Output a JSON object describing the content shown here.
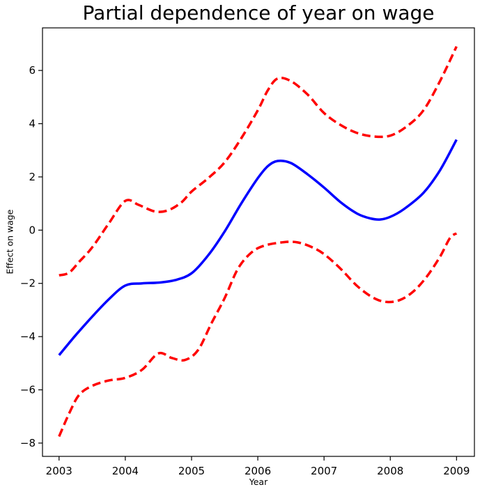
{
  "chart_data": {
    "type": "line",
    "title": "Partial dependence of year on wage",
    "xlabel": "Year",
    "ylabel": "Effect on wage",
    "xlim": [
      2002.75,
      2009.27
    ],
    "ylim": [
      -8.5,
      7.6
    ],
    "grid": false,
    "legend": null,
    "background_color": "#ffffff",
    "spine_color": "#000000",
    "xticks": {
      "values": [
        2003,
        2004,
        2005,
        2006,
        2007,
        2008,
        2009
      ],
      "labels": [
        "2003",
        "2004",
        "2005",
        "2006",
        "2007",
        "2008",
        "2009"
      ]
    },
    "yticks": {
      "values": [
        -8,
        -6,
        -4,
        -2,
        0,
        2,
        4,
        6
      ],
      "labels": [
        "−8",
        "−6",
        "−4",
        "−2",
        "0",
        "2",
        "4",
        "6"
      ]
    },
    "series": [
      {
        "name": "partial-dependence-fit",
        "color": "#0000ff",
        "style": "solid",
        "width": 3.5,
        "x": [
          2003.0,
          2003.25,
          2003.5,
          2003.75,
          2004.0,
          2004.25,
          2004.5,
          2004.75,
          2005.0,
          2005.25,
          2005.5,
          2005.75,
          2006.0,
          2006.15,
          2006.3,
          2006.5,
          2006.75,
          2007.0,
          2007.25,
          2007.5,
          2007.7,
          2007.85,
          2008.0,
          2008.2,
          2008.5,
          2008.75,
          2009.0
        ],
        "y": [
          -4.7,
          -3.95,
          -3.25,
          -2.6,
          -2.08,
          -2.0,
          -1.97,
          -1.88,
          -1.62,
          -0.95,
          -0.05,
          1.0,
          1.95,
          2.4,
          2.6,
          2.52,
          2.1,
          1.6,
          1.05,
          0.62,
          0.44,
          0.4,
          0.5,
          0.78,
          1.4,
          2.25,
          3.4
        ]
      },
      {
        "name": "upper-confidence-band",
        "color": "#ff0000",
        "style": "dashed",
        "width": 3.5,
        "x": [
          2003.0,
          2003.15,
          2003.3,
          2003.5,
          2003.75,
          2004.0,
          2004.2,
          2004.45,
          2004.65,
          2004.85,
          2005.0,
          2005.25,
          2005.5,
          2005.75,
          2006.0,
          2006.15,
          2006.3,
          2006.5,
          2006.75,
          2007.0,
          2007.25,
          2007.5,
          2007.75,
          2008.0,
          2008.25,
          2008.5,
          2008.75,
          2009.0
        ],
        "y": [
          -1.7,
          -1.6,
          -1.2,
          -0.65,
          0.25,
          1.1,
          0.95,
          0.7,
          0.75,
          1.05,
          1.45,
          1.95,
          2.55,
          3.45,
          4.5,
          5.25,
          5.7,
          5.6,
          5.1,
          4.4,
          3.95,
          3.65,
          3.52,
          3.55,
          3.9,
          4.5,
          5.6,
          6.9
        ]
      },
      {
        "name": "lower-confidence-band",
        "color": "#ff0000",
        "style": "dashed",
        "width": 3.5,
        "x": [
          2003.0,
          2003.15,
          2003.3,
          2003.5,
          2003.75,
          2004.0,
          2004.25,
          2004.5,
          2004.7,
          2004.9,
          2005.1,
          2005.3,
          2005.5,
          2005.7,
          2005.9,
          2006.1,
          2006.4,
          2006.6,
          2006.8,
          2007.0,
          2007.25,
          2007.5,
          2007.75,
          2007.95,
          2008.15,
          2008.35,
          2008.55,
          2008.75,
          2008.9,
          2009.0
        ],
        "y": [
          -7.75,
          -6.9,
          -6.2,
          -5.85,
          -5.65,
          -5.55,
          -5.25,
          -4.63,
          -4.8,
          -4.88,
          -4.5,
          -3.5,
          -2.55,
          -1.45,
          -0.85,
          -0.58,
          -0.45,
          -0.46,
          -0.62,
          -0.9,
          -1.45,
          -2.1,
          -2.55,
          -2.7,
          -2.62,
          -2.3,
          -1.75,
          -1.0,
          -0.3,
          -0.12
        ]
      }
    ]
  }
}
